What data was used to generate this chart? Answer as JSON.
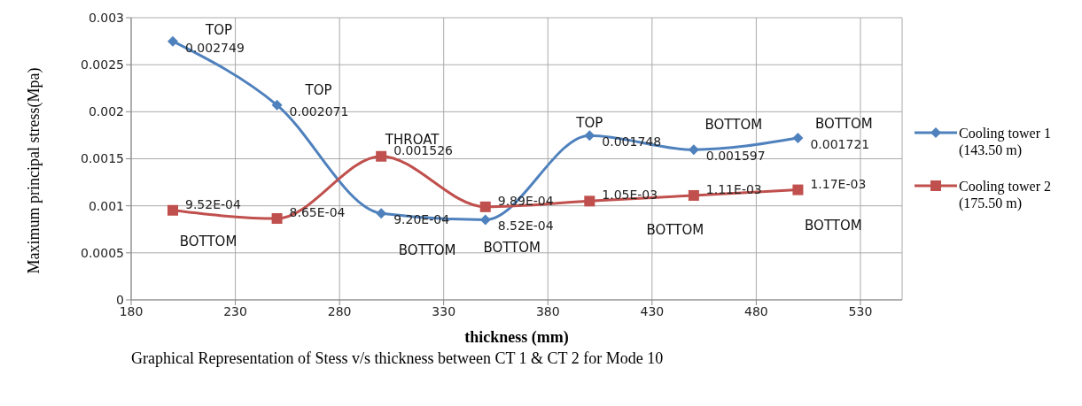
{
  "chart_data": {
    "type": "line",
    "title": "Graphical  Representation of Stess v/s thickness between CT 1 & CT 2 for Mode 10",
    "xlabel": "thickness (mm)",
    "ylabel": "Maximum principal stress(Mpa)",
    "x": [
      200,
      250,
      300,
      350,
      400,
      450,
      500
    ],
    "series": [
      {
        "name": "Cooling tower 1 (143.50 m)",
        "color": "#4f81bd",
        "marker": "diamond",
        "values": [
          0.002749,
          0.002071,
          0.00092,
          0.000852,
          0.001748,
          0.001597,
          0.001721
        ],
        "value_labels": [
          "0.002749",
          "0.002071",
          "9.20E-04",
          "8.52E-04",
          "0.001748",
          "0.001597",
          "0.001721"
        ]
      },
      {
        "name": "Cooling tower 2 (175.50 m)",
        "color": "#c0504d",
        "marker": "square",
        "values": [
          0.000952,
          0.000865,
          0.001526,
          0.000989,
          0.00105,
          0.00111,
          0.00117
        ],
        "value_labels": [
          "9.52E-04",
          "8.65E-04",
          "0.001526",
          "9.89E-04",
          "1.05E-03",
          "1.11E-03",
          "1.17E-03"
        ]
      }
    ],
    "xlim": [
      180,
      550
    ],
    "xticks": [
      180,
      230,
      280,
      330,
      380,
      430,
      480,
      530
    ],
    "ylim": [
      0,
      0.003
    ],
    "yticks": [
      0,
      0.0005,
      0.001,
      0.0015,
      0.002,
      0.0025,
      0.003
    ],
    "grid": true,
    "legend": "right",
    "annotations": [
      {
        "text": "TOP",
        "x": 200,
        "y": 0.002749
      },
      {
        "text": "TOP",
        "x": 250,
        "y": 0.002071
      },
      {
        "text": "THROAT",
        "x": 300,
        "y": 0.001526
      },
      {
        "text": "BOTTOM",
        "x": 200,
        "y": 0.000952
      },
      {
        "text": "BOTTOM",
        "x": 300,
        "y": 0.00092
      },
      {
        "text": "BOTTOM",
        "x": 350,
        "y": 0.000852
      },
      {
        "text": "TOP",
        "x": 400,
        "y": 0.001748
      },
      {
        "text": "BOTTOM",
        "x": 450,
        "y": 0.001597
      },
      {
        "text": "BOTTOM",
        "x": 500,
        "y": 0.001721
      },
      {
        "text": "BOTTOM",
        "x": 450,
        "y": 0.00111
      },
      {
        "text": "BOTTOM",
        "x": 500,
        "y": 0.00117
      }
    ]
  }
}
